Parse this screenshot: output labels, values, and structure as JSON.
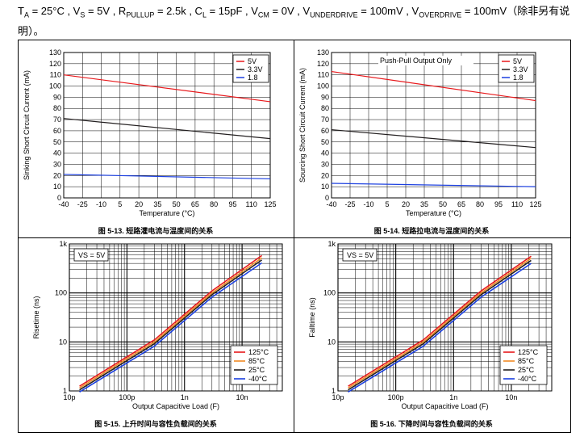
{
  "header": {
    "parts": [
      "T",
      "A",
      " = 25°C , V",
      "S",
      " = 5V , R",
      "PULLUP",
      " = 2.5k , C",
      "L",
      " = 15pF , V",
      "CM",
      " = 0V , V",
      "UNDERDRIVE",
      " = 100mV , V",
      "OVERDRIVE",
      " = 100mV（除非另有说明）。"
    ]
  },
  "captions": {
    "c1": "图 5-13. 短路灌电流与温度间的关系",
    "c2": "图 5-14. 短路拉电流与温度间的关系",
    "c3": "图 5-15. 上升时间与容性负载间的关系",
    "c4": "图 5-16. 下降时间与容性负载间的关系"
  },
  "colors": {
    "red": "#e8191c",
    "black": "#231f20",
    "blue": "#1b3fe0",
    "orange": "#f28b26"
  },
  "chart_data": [
    {
      "type": "line",
      "id": "sink",
      "title": "",
      "xlabel": "Temperature (°C)",
      "ylabel": "Sinking Short Circuit Current (mA)",
      "xlim": [
        -40,
        125
      ],
      "ylim": [
        0,
        130
      ],
      "xticks": [
        "-40",
        "-25",
        "-10",
        "5",
        "20",
        "35",
        "50",
        "65",
        "80",
        "95",
        "110",
        "125"
      ],
      "yticks": [
        "0",
        "10",
        "20",
        "30",
        "40",
        "50",
        "60",
        "70",
        "80",
        "90",
        "100",
        "110",
        "120",
        "130"
      ],
      "legend": "top-right",
      "x": [
        -40,
        125
      ],
      "series": [
        {
          "name": "5V",
          "color": "red",
          "values": [
            110,
            86
          ]
        },
        {
          "name": "3.3V",
          "color": "black",
          "values": [
            71,
            53
          ]
        },
        {
          "name": "1.8",
          "color": "blue",
          "values": [
            21,
            17
          ]
        }
      ]
    },
    {
      "type": "line",
      "id": "source",
      "title": "",
      "annotation": "Push-Pull Output Only",
      "xlabel": "Temperature (°C)",
      "ylabel": "Sourcing Short Circuit Current (mA)",
      "xlim": [
        -40,
        125
      ],
      "ylim": [
        0,
        130
      ],
      "xticks": [
        "-40",
        "-25",
        "-10",
        "5",
        "20",
        "35",
        "50",
        "65",
        "80",
        "95",
        "110",
        "125"
      ],
      "yticks": [
        "0",
        "10",
        "20",
        "30",
        "40",
        "50",
        "60",
        "70",
        "80",
        "90",
        "100",
        "110",
        "120",
        "130"
      ],
      "legend": "top-right",
      "x": [
        -40,
        125
      ],
      "series": [
        {
          "name": "5V",
          "color": "red",
          "values": [
            113,
            87
          ]
        },
        {
          "name": "3.3V",
          "color": "black",
          "values": [
            61,
            45
          ]
        },
        {
          "name": "1.8",
          "color": "blue",
          "values": [
            13,
            10
          ]
        }
      ]
    },
    {
      "type": "line",
      "id": "rise",
      "scale": "log-log",
      "annotation": "VS = 5V",
      "xlabel": "Output Capacitive Load (F)",
      "ylabel": "Risetime (ns)",
      "xlim": [
        1e-11,
        5e-08
      ],
      "ylim": [
        1,
        1000
      ],
      "xticks": [
        "10p",
        "100p",
        "1n",
        "10n"
      ],
      "yticks": [
        "1",
        "10",
        "100",
        "1k"
      ],
      "legend": "bottom-right",
      "x": [
        1.5e-11,
        3e-10,
        3e-09,
        2.2e-08
      ],
      "series": [
        {
          "name": "125°C",
          "color": "red",
          "values": [
            1.25,
            11,
            110,
            580
          ]
        },
        {
          "name": "85°C",
          "color": "orange",
          "values": [
            1.15,
            10,
            100,
            520
          ]
        },
        {
          "name": "25°C",
          "color": "black",
          "values": [
            1.05,
            9.2,
            92,
            470
          ]
        },
        {
          "name": "-40°C",
          "color": "blue",
          "values": [
            0.95,
            8.2,
            82,
            410
          ]
        }
      ]
    },
    {
      "type": "line",
      "id": "fall",
      "scale": "log-log",
      "annotation": "VS = 5V",
      "xlabel": "Output Capacitive Load (F)",
      "ylabel": "Falltime (ns)",
      "xlim": [
        1e-11,
        5e-08
      ],
      "ylim": [
        1,
        1000
      ],
      "xticks": [
        "10p",
        "100p",
        "1n",
        "10n"
      ],
      "yticks": [
        "1",
        "10",
        "100",
        "1k"
      ],
      "legend": "bottom-right",
      "x": [
        1.5e-11,
        3e-10,
        3e-09,
        2.2e-08
      ],
      "series": [
        {
          "name": "125°C",
          "color": "red",
          "values": [
            1.25,
            11,
            110,
            560
          ]
        },
        {
          "name": "85°C",
          "color": "orange",
          "values": [
            1.15,
            10,
            100,
            510
          ]
        },
        {
          "name": "25°C",
          "color": "black",
          "values": [
            1.05,
            9.2,
            92,
            460
          ]
        },
        {
          "name": "-40°C",
          "color": "blue",
          "values": [
            0.95,
            8.2,
            82,
            400
          ]
        }
      ]
    }
  ]
}
